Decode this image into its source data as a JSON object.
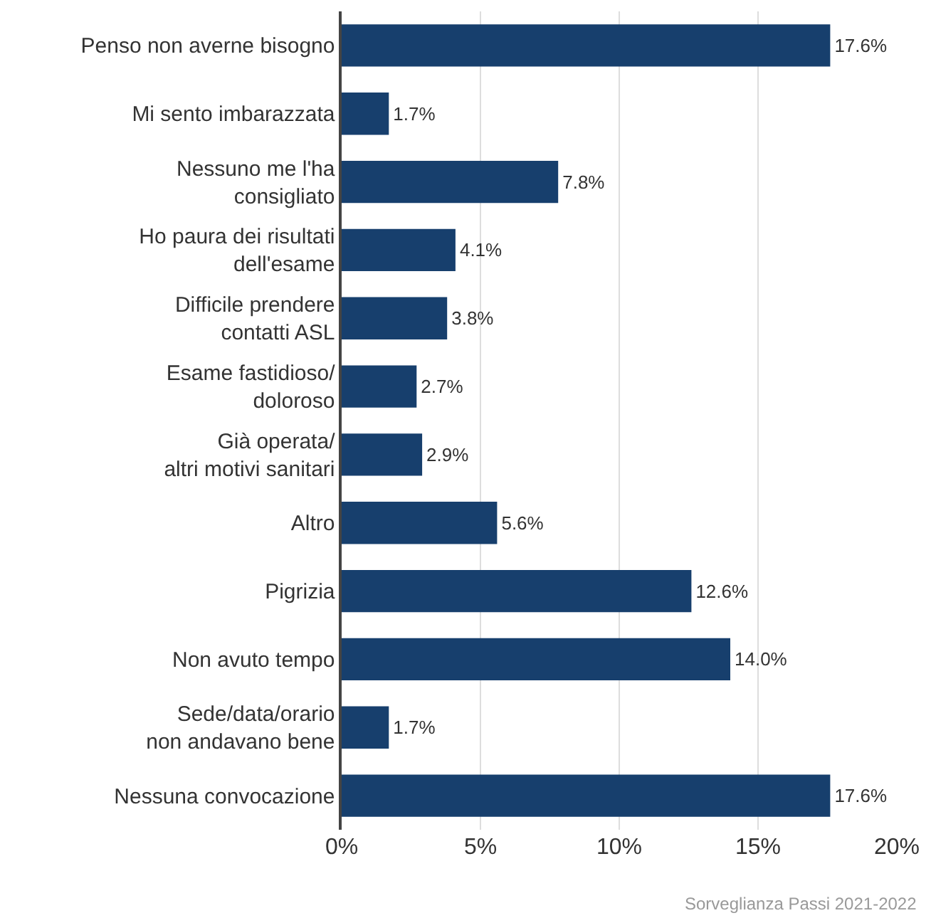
{
  "chart_data": {
    "type": "bar",
    "orientation": "horizontal",
    "categories": [
      "Penso non averne bisogno",
      "Mi sento imbarazzata",
      "Nessuno me l'ha\nconsigliato",
      "Ho paura dei risultati\ndell'esame",
      "Difficile prendere\ncontatti ASL",
      "Esame fastidioso/\ndoloroso",
      "Già operata/\naltri motivi sanitari",
      "Altro",
      "Pigrizia",
      "Non avuto tempo",
      "Sede/data/orario\nnon andavano bene",
      "Nessuna convocazione"
    ],
    "values": [
      17.6,
      1.7,
      7.8,
      4.1,
      3.8,
      2.7,
      2.9,
      5.6,
      12.6,
      14.0,
      1.7,
      17.6
    ],
    "value_labels": [
      "17.6%",
      "1.7%",
      "7.8%",
      "4.1%",
      "3.8%",
      "2.7%",
      "2.9%",
      "5.6%",
      "12.6%",
      "14.0%",
      "1.7%",
      "17.6%"
    ],
    "color": "#173f6d",
    "xlim": [
      0,
      20
    ],
    "xticks": [
      {
        "value": 0,
        "label": "0%"
      },
      {
        "value": 5,
        "label": "5%"
      },
      {
        "value": 10,
        "label": "10%"
      },
      {
        "value": 15,
        "label": "15%"
      },
      {
        "value": 20,
        "label": "20%"
      }
    ],
    "grid": "x",
    "legend": false,
    "annotations": [
      "Sorveglianza Passi 2021-2022"
    ]
  }
}
